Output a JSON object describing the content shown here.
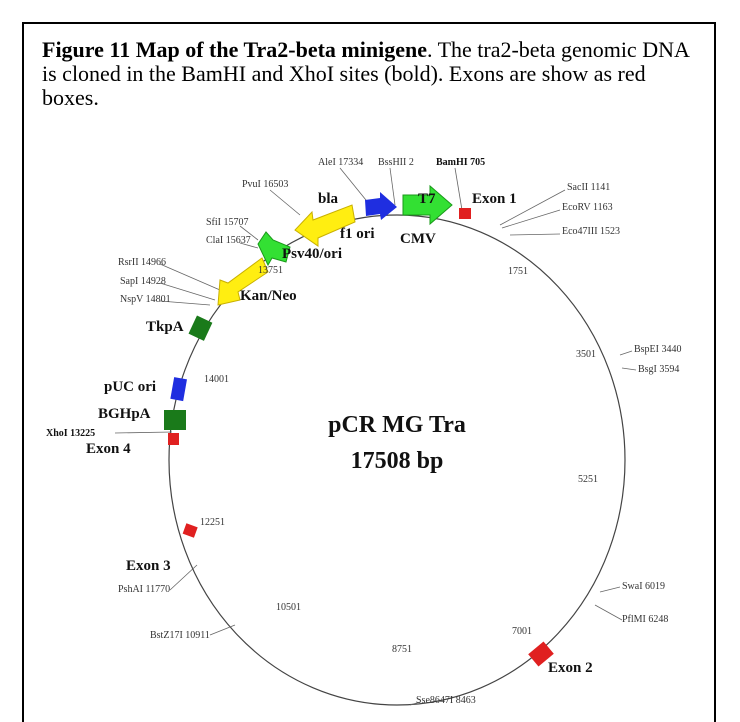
{
  "caption": {
    "title": "Figure 11 Map of the Tra2-beta minigene",
    "text": ". The tra2-beta genomic DNA is cloned in the BamHI and XhoI sites (bold). Exons are show as red boxes."
  },
  "map": {
    "name": "pCR MG Tra",
    "size": "17508 bp"
  },
  "labels": [
    "AleI 17334",
    "BssHII 2",
    "BamHI 705",
    "T7",
    "Exon 1",
    "SacII 1141",
    "EcoRV 1163",
    "Eco47III 1523",
    "1751",
    "PvuI 16503",
    "bla",
    "f1 ori",
    "CMV",
    "SfiI 15707",
    "ClaI 15637",
    "Psv40/ori",
    "13751",
    "RsrII 14966",
    "SapI 14928",
    "NspV 14801",
    "Kan/Neo",
    "TkpA",
    "BspEI 3440",
    "3501",
    "BsgI 3594",
    "14001",
    "pUC ori",
    "BGHpA",
    "XhoI 13225",
    "Exon 4",
    "5251",
    "12251",
    "Exon 3",
    "PshAI 11770",
    "SwaI 6019",
    "PflMI 6248",
    "10501",
    "BstZ17I 10911",
    "7001",
    "Exon 2",
    "8751",
    "Sse8647I 8463"
  ]
}
